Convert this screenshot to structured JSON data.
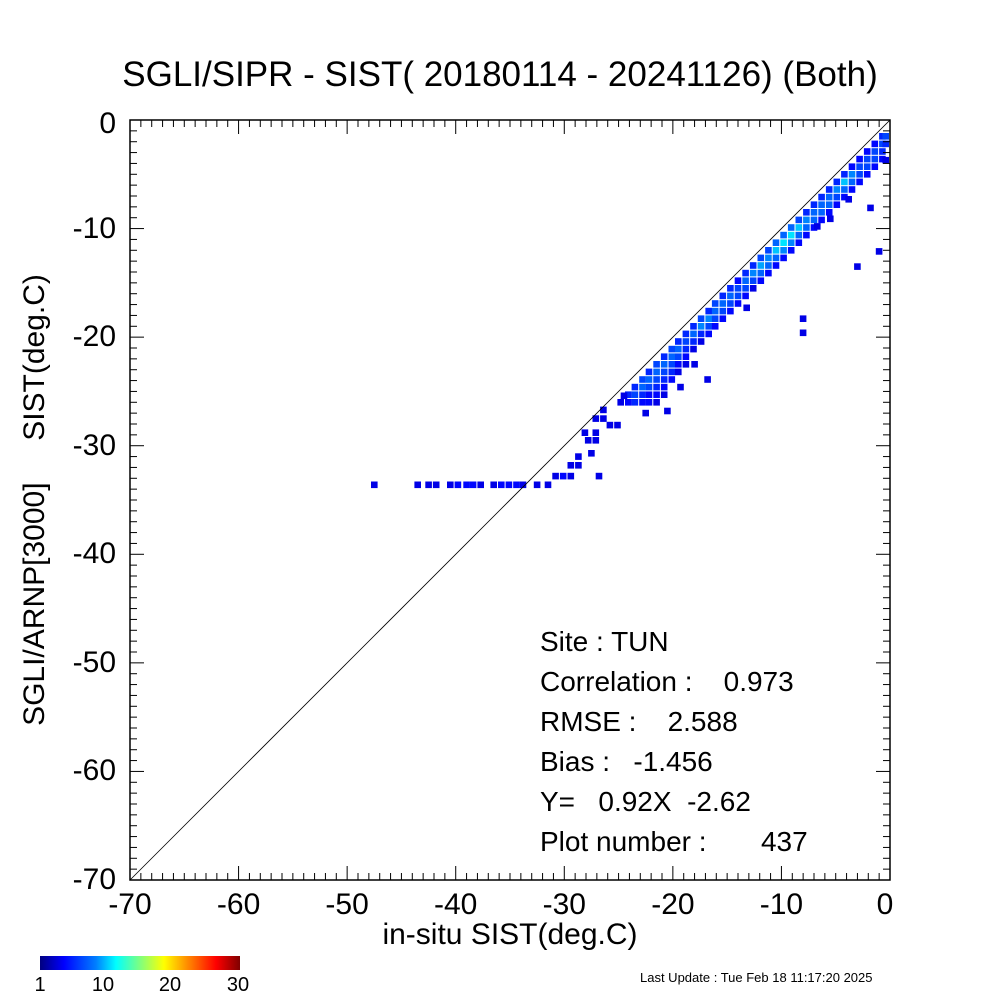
{
  "chart_data": {
    "type": "heatmap",
    "title": "SGLI/SIPR - SIST( 20180114 - 20241126) (Both)",
    "xlabel": "in-situ SIST(deg.C)",
    "ylabel": "SGLI/ARNP[3000]     SIST(deg.C)",
    "xlim": [
      -70,
      0
    ],
    "ylim": [
      -70,
      0
    ],
    "xticks": [
      "-70",
      "-60",
      "-50",
      "-40",
      "-30",
      "-20",
      "-10",
      "0"
    ],
    "yticks": [
      "0",
      "-10",
      "-20",
      "-30",
      "-40",
      "-50",
      "-60",
      "-70"
    ],
    "one_to_one_line": true,
    "colorbar": {
      "ticks": [
        "1",
        "10",
        "20",
        "30"
      ],
      "range": [
        1,
        30
      ],
      "colormap": "jet"
    },
    "cells": [
      [
        -47.5,
        -33.6,
        1
      ],
      [
        -43.5,
        -33.6,
        1
      ],
      [
        -42.5,
        -33.6,
        1
      ],
      [
        -41.8,
        -33.6,
        1
      ],
      [
        -40.5,
        -33.6,
        1
      ],
      [
        -39.8,
        -33.6,
        2
      ],
      [
        -39,
        -33.6,
        2
      ],
      [
        -38.4,
        -33.6,
        2
      ],
      [
        -37.7,
        -33.6,
        1
      ],
      [
        -36.5,
        -33.6,
        1
      ],
      [
        -35.8,
        -33.6,
        2
      ],
      [
        -35.1,
        -33.6,
        2
      ],
      [
        -34.4,
        -33.6,
        2
      ],
      [
        -33.8,
        -33.6,
        1
      ],
      [
        -32.5,
        -33.6,
        1
      ],
      [
        -31.5,
        -33.6,
        1
      ],
      [
        -30.8,
        -32.8,
        1
      ],
      [
        -30.1,
        -32.8,
        2
      ],
      [
        -29.4,
        -32.8,
        1
      ],
      [
        -29.4,
        -31.8,
        1
      ],
      [
        -28.7,
        -31.8,
        1
      ],
      [
        -28.7,
        -31,
        1
      ],
      [
        -27.8,
        -29.5,
        1
      ],
      [
        -27.1,
        -29.5,
        1
      ],
      [
        -27.1,
        -28.8,
        1
      ],
      [
        -28.1,
        -28.8,
        1
      ],
      [
        -26.8,
        -32.8,
        1
      ],
      [
        -27.1,
        -27.5,
        1
      ],
      [
        -26.4,
        -27.5,
        1
      ],
      [
        -25.8,
        -28.1,
        1
      ],
      [
        -25.1,
        -28.1,
        1
      ],
      [
        -26.4,
        -26.7,
        1
      ],
      [
        -24.8,
        -26,
        1
      ],
      [
        -24.1,
        -26,
        2
      ],
      [
        -23.5,
        -26,
        3
      ],
      [
        -22.8,
        -26,
        2
      ],
      [
        -22.2,
        -26,
        2
      ],
      [
        -21.5,
        -26,
        1
      ],
      [
        -24.1,
        -25.3,
        3
      ],
      [
        -23.5,
        -25.3,
        4
      ],
      [
        -22.8,
        -25.3,
        3
      ],
      [
        -22.2,
        -25.3,
        2
      ],
      [
        -21.5,
        -25.3,
        2
      ],
      [
        -20.8,
        -25.3,
        1
      ],
      [
        -23.5,
        -24.6,
        3
      ],
      [
        -22.8,
        -24.6,
        5
      ],
      [
        -22.2,
        -24.6,
        4
      ],
      [
        -21.5,
        -24.6,
        3
      ],
      [
        -20.8,
        -24.6,
        2
      ],
      [
        -22.8,
        -23.9,
        4
      ],
      [
        -22.2,
        -23.9,
        5
      ],
      [
        -21.5,
        -23.9,
        4
      ],
      [
        -20.8,
        -23.9,
        3
      ],
      [
        -20.1,
        -23.9,
        2
      ],
      [
        -22.2,
        -23.2,
        3
      ],
      [
        -21.5,
        -23.2,
        5
      ],
      [
        -20.8,
        -23.2,
        4
      ],
      [
        -20.1,
        -23.2,
        3
      ],
      [
        -19.5,
        -23.2,
        1
      ],
      [
        -21.5,
        -22.5,
        4
      ],
      [
        -20.8,
        -22.5,
        5
      ],
      [
        -20.1,
        -22.5,
        4
      ],
      [
        -19.5,
        -22.5,
        2
      ],
      [
        -18.8,
        -22.5,
        1
      ],
      [
        -20.8,
        -21.8,
        3
      ],
      [
        -20.1,
        -21.8,
        5
      ],
      [
        -19.5,
        -21.8,
        4
      ],
      [
        -18.8,
        -21.8,
        2
      ],
      [
        -20.1,
        -21.1,
        4
      ],
      [
        -19.5,
        -21.1,
        5
      ],
      [
        -18.8,
        -21.1,
        3
      ],
      [
        -18.1,
        -21.1,
        1
      ],
      [
        -19.5,
        -20.4,
        3
      ],
      [
        -18.8,
        -20.4,
        4
      ],
      [
        -18.1,
        -20.4,
        3
      ],
      [
        -17.4,
        -20.4,
        1
      ],
      [
        -18.8,
        -19.7,
        3
      ],
      [
        -18.1,
        -19.7,
        5
      ],
      [
        -17.4,
        -19.7,
        3
      ],
      [
        -16.7,
        -19.7,
        2
      ],
      [
        -18.1,
        -19,
        3
      ],
      [
        -17.4,
        -19,
        6
      ],
      [
        -16.7,
        -19,
        4
      ],
      [
        -16.1,
        -19,
        2
      ],
      [
        -17.4,
        -18.3,
        4
      ],
      [
        -16.7,
        -18.3,
        6
      ],
      [
        -16.1,
        -18.3,
        4
      ],
      [
        -15.4,
        -18.3,
        2
      ],
      [
        -16.7,
        -17.6,
        3
      ],
      [
        -16.1,
        -17.6,
        5
      ],
      [
        -15.4,
        -17.6,
        4
      ],
      [
        -14.7,
        -17.6,
        2
      ],
      [
        -16.1,
        -16.9,
        4
      ],
      [
        -15.4,
        -16.9,
        5
      ],
      [
        -14.7,
        -16.9,
        4
      ],
      [
        -14,
        -16.9,
        2
      ],
      [
        -15.4,
        -16.2,
        3
      ],
      [
        -14.7,
        -16.2,
        5
      ],
      [
        -14,
        -16.2,
        4
      ],
      [
        -13.3,
        -16.2,
        2
      ],
      [
        -14.7,
        -15.5,
        3
      ],
      [
        -14,
        -15.5,
        4
      ],
      [
        -13.3,
        -15.5,
        4
      ],
      [
        -12.6,
        -15.5,
        1
      ],
      [
        -14,
        -14.8,
        2
      ],
      [
        -13.3,
        -14.8,
        5
      ],
      [
        -12.6,
        -14.8,
        4
      ],
      [
        -11.9,
        -14.8,
        2
      ],
      [
        -13.3,
        -14.1,
        3
      ],
      [
        -12.6,
        -14.1,
        6
      ],
      [
        -11.9,
        -14.1,
        5
      ],
      [
        -11.2,
        -14.1,
        2
      ],
      [
        -12.6,
        -13.4,
        3
      ],
      [
        -11.9,
        -13.4,
        7
      ],
      [
        -11.2,
        -13.4,
        5
      ],
      [
        -10.5,
        -13.4,
        2
      ],
      [
        -11.9,
        -12.7,
        4
      ],
      [
        -11.2,
        -12.7,
        6
      ],
      [
        -10.5,
        -12.7,
        5
      ],
      [
        -9.8,
        -12.7,
        2
      ],
      [
        -11.2,
        -12,
        4
      ],
      [
        -10.5,
        -12,
        8
      ],
      [
        -9.8,
        -12,
        6
      ],
      [
        -9.1,
        -12,
        2
      ],
      [
        -10.5,
        -11.3,
        5
      ],
      [
        -9.8,
        -11.3,
        9
      ],
      [
        -9.1,
        -11.3,
        6
      ],
      [
        -8.4,
        -11.3,
        2
      ],
      [
        -9.8,
        -10.6,
        5
      ],
      [
        -9.1,
        -10.6,
        9
      ],
      [
        -8.4,
        -10.6,
        5
      ],
      [
        -7.7,
        -10.6,
        2
      ],
      [
        -9.1,
        -9.9,
        5
      ],
      [
        -8.4,
        -9.9,
        8
      ],
      [
        -7.7,
        -9.9,
        5
      ],
      [
        -7,
        -9.9,
        2
      ],
      [
        -8.4,
        -9.2,
        4
      ],
      [
        -7.7,
        -9.2,
        6
      ],
      [
        -7,
        -9.2,
        5
      ],
      [
        -6.3,
        -9.2,
        2
      ],
      [
        -7.7,
        -8.5,
        3
      ],
      [
        -7,
        -8.5,
        5
      ],
      [
        -6.3,
        -8.5,
        5
      ],
      [
        -5.6,
        -8.5,
        2
      ],
      [
        -7,
        -7.8,
        3
      ],
      [
        -6.3,
        -7.8,
        5
      ],
      [
        -5.6,
        -7.8,
        5
      ],
      [
        -4.9,
        -7.8,
        2
      ],
      [
        -6.3,
        -7.1,
        3
      ],
      [
        -5.6,
        -7.1,
        5
      ],
      [
        -4.9,
        -7.1,
        4
      ],
      [
        -4.2,
        -7.1,
        2
      ],
      [
        -5.6,
        -6.4,
        3
      ],
      [
        -4.9,
        -6.4,
        6
      ],
      [
        -4.2,
        -6.4,
        5
      ],
      [
        -3.5,
        -6.4,
        2
      ],
      [
        -4.9,
        -5.7,
        3
      ],
      [
        -4.2,
        -5.7,
        8
      ],
      [
        -3.5,
        -5.7,
        5
      ],
      [
        -2.8,
        -5.7,
        2
      ],
      [
        -4.2,
        -5,
        3
      ],
      [
        -3.5,
        -5,
        6
      ],
      [
        -2.8,
        -5,
        4
      ],
      [
        -2.1,
        -5,
        2
      ],
      [
        -3.5,
        -4.3,
        2
      ],
      [
        -2.8,
        -4.3,
        4
      ],
      [
        -2.1,
        -4.3,
        4
      ],
      [
        -1.4,
        -4.3,
        2
      ],
      [
        -2.8,
        -3.6,
        2
      ],
      [
        -2.1,
        -3.6,
        4
      ],
      [
        -1.4,
        -3.6,
        4
      ],
      [
        -0.7,
        -3.6,
        2
      ],
      [
        -2.1,
        -2.9,
        2
      ],
      [
        -1.4,
        -2.9,
        4
      ],
      [
        -0.7,
        -2.9,
        3
      ],
      [
        -1.4,
        -2.2,
        2
      ],
      [
        -0.7,
        -2.2,
        4
      ],
      [
        -0.4,
        -2.2,
        3
      ],
      [
        -0.7,
        -1.5,
        3
      ],
      [
        -0.4,
        -1.5,
        4
      ],
      [
        -0.4,
        -3.7,
        1
      ],
      [
        -8,
        -18.3,
        1
      ],
      [
        -8,
        -19.6,
        1
      ],
      [
        -3,
        -13.5,
        1
      ],
      [
        -1,
        -12.1,
        1
      ],
      [
        -1.8,
        -8.1,
        1
      ],
      [
        -3.8,
        -7.3,
        1
      ],
      [
        -5.5,
        -9.1,
        1
      ],
      [
        -6.7,
        -9.8,
        1
      ],
      [
        -18,
        -22.5,
        1
      ],
      [
        -22.5,
        -27,
        1
      ],
      [
        -24.5,
        -25.4,
        1
      ],
      [
        -27.5,
        -30.7,
        1
      ],
      [
        -19.3,
        -24.6,
        1
      ],
      [
        -16.8,
        -23.9,
        1
      ],
      [
        -13.2,
        -17.3,
        1
      ],
      [
        -20.5,
        -26.8,
        1
      ]
    ]
  },
  "stats": {
    "site": "Site : TUN",
    "correlation": "Correlation :    0.973",
    "rmse": "RMSE :    2.588",
    "bias": "Bias :   -1.456",
    "regression": "Y=   0.92X  -2.62",
    "plot_number": "Plot number :       437"
  },
  "last_update": "Last Update : Tue Feb 18 11:17:20 2025"
}
